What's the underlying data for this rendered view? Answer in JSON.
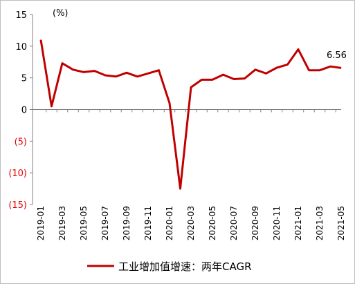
{
  "chart_data": {
    "type": "line",
    "unit_label": "(%)",
    "ylim": [
      -15,
      15
    ],
    "yticks": [
      {
        "value": 15,
        "label": "15"
      },
      {
        "value": 10,
        "label": "10"
      },
      {
        "value": 5,
        "label": "5"
      },
      {
        "value": 0,
        "label": "0"
      },
      {
        "value": -5,
        "label": "(5)"
      },
      {
        "value": -10,
        "label": "(10)"
      },
      {
        "value": -15,
        "label": "(15)"
      }
    ],
    "negative_label_color": "#e60000",
    "positive_label_color": "#000000",
    "x": [
      "2019-01",
      "2019-02",
      "2019-03",
      "2019-04",
      "2019-05",
      "2019-06",
      "2019-07",
      "2019-08",
      "2019-09",
      "2019-10",
      "2019-11",
      "2019-12",
      "2020-01",
      "2020-02",
      "2020-03",
      "2020-04",
      "2020-05",
      "2020-06",
      "2020-07",
      "2020-08",
      "2020-09",
      "2020-10",
      "2020-11",
      "2020-12",
      "2021-01",
      "2021-02",
      "2021-03",
      "2021-04",
      "2021-05"
    ],
    "xtick_labels": [
      "2019-01",
      "2019-03",
      "2019-05",
      "2019-07",
      "2019-09",
      "2019-11",
      "2020-01",
      "2020-03",
      "2020-05",
      "2020-07",
      "2020-09",
      "2020-11",
      "2021-01",
      "2021-03",
      "2021-05"
    ],
    "series": [
      {
        "name": "工业增加值增速：两年CAGR",
        "color": "#c00000",
        "values": [
          11.0,
          0.5,
          7.3,
          6.3,
          5.9,
          6.1,
          5.4,
          5.2,
          5.8,
          5.2,
          5.7,
          6.2,
          1.0,
          -12.5,
          3.5,
          4.7,
          4.7,
          5.5,
          4.8,
          4.9,
          6.3,
          5.7,
          6.6,
          7.1,
          9.5,
          6.2,
          6.2,
          6.8,
          6.56
        ]
      }
    ],
    "annotations": [
      {
        "x": "2021-05",
        "text": "6.56"
      }
    ],
    "grid": false,
    "legend": "bottom"
  }
}
